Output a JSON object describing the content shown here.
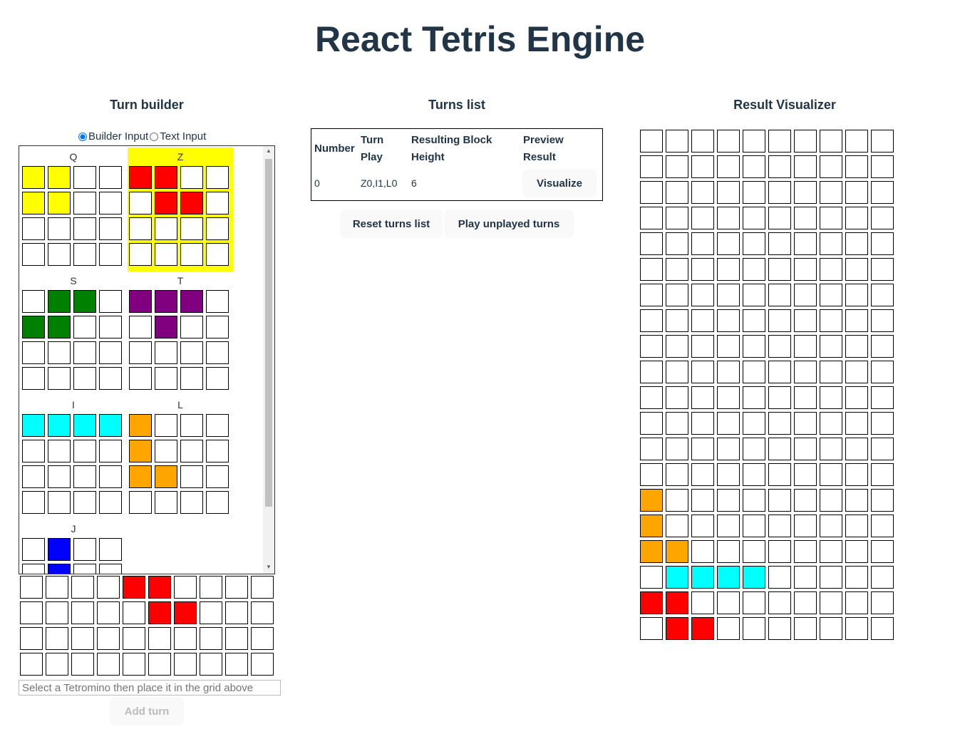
{
  "app": {
    "title": "React Tetris Engine"
  },
  "turn_builder": {
    "heading": "Turn builder",
    "radio_builder": "Builder Input",
    "radio_text": "Text Input",
    "selected_input": "builder",
    "pieces": [
      {
        "name": "Q",
        "selected": false,
        "color": "#ffff00",
        "cells": [
          [
            0,
            0
          ],
          [
            0,
            1
          ],
          [
            1,
            0
          ],
          [
            1,
            1
          ]
        ]
      },
      {
        "name": "Z",
        "selected": true,
        "color": "#ff0000",
        "cells": [
          [
            0,
            0
          ],
          [
            0,
            1
          ],
          [
            1,
            1
          ],
          [
            1,
            2
          ]
        ]
      },
      {
        "name": "S",
        "selected": false,
        "color": "#008000",
        "cells": [
          [
            0,
            1
          ],
          [
            0,
            2
          ],
          [
            1,
            0
          ],
          [
            1,
            1
          ]
        ]
      },
      {
        "name": "T",
        "selected": false,
        "color": "#800080",
        "cells": [
          [
            0,
            0
          ],
          [
            0,
            1
          ],
          [
            0,
            2
          ],
          [
            1,
            1
          ]
        ]
      },
      {
        "name": "I",
        "selected": false,
        "color": "#00ffff",
        "cells": [
          [
            0,
            0
          ],
          [
            0,
            1
          ],
          [
            0,
            2
          ],
          [
            0,
            3
          ]
        ]
      },
      {
        "name": "L",
        "selected": false,
        "color": "#ffa500",
        "cells": [
          [
            0,
            0
          ],
          [
            1,
            0
          ],
          [
            2,
            0
          ],
          [
            2,
            1
          ]
        ]
      },
      {
        "name": "J",
        "selected": false,
        "color": "#0000ff",
        "cells": [
          [
            0,
            1
          ],
          [
            1,
            1
          ]
        ]
      }
    ],
    "placement_grid": {
      "rows": 4,
      "cols": 10,
      "filled": [
        {
          "r": 0,
          "c": 4,
          "color": "#ff0000"
        },
        {
          "r": 0,
          "c": 5,
          "color": "#ff0000"
        },
        {
          "r": 1,
          "c": 5,
          "color": "#ff0000"
        },
        {
          "r": 1,
          "c": 6,
          "color": "#ff0000"
        }
      ]
    },
    "input_placeholder": "Select a Tetromino then place it in the grid above",
    "add_turn_label": "Add turn"
  },
  "turns_list": {
    "heading": "Turns list",
    "columns": [
      "Number",
      "Turn Play",
      "Resulting Block Height",
      "Preview Result"
    ],
    "rows": [
      {
        "number": "0",
        "turn_play": "Z0,I1,L0",
        "height": "6",
        "action": "Visualize"
      }
    ],
    "reset_label": "Reset turns list",
    "play_label": "Play unplayed turns"
  },
  "visualizer": {
    "heading": "Result Visualizer",
    "rows": 20,
    "cols": 10,
    "filled": [
      {
        "r": 14,
        "c": 0,
        "color": "#ffa500"
      },
      {
        "r": 15,
        "c": 0,
        "color": "#ffa500"
      },
      {
        "r": 16,
        "c": 0,
        "color": "#ffa500"
      },
      {
        "r": 16,
        "c": 1,
        "color": "#ffa500"
      },
      {
        "r": 17,
        "c": 1,
        "color": "#00ffff"
      },
      {
        "r": 17,
        "c": 2,
        "color": "#00ffff"
      },
      {
        "r": 17,
        "c": 3,
        "color": "#00ffff"
      },
      {
        "r": 17,
        "c": 4,
        "color": "#00ffff"
      },
      {
        "r": 18,
        "c": 0,
        "color": "#ff0000"
      },
      {
        "r": 18,
        "c": 1,
        "color": "#ff0000"
      },
      {
        "r": 19,
        "c": 1,
        "color": "#ff0000"
      },
      {
        "r": 19,
        "c": 2,
        "color": "#ff0000"
      }
    ]
  }
}
